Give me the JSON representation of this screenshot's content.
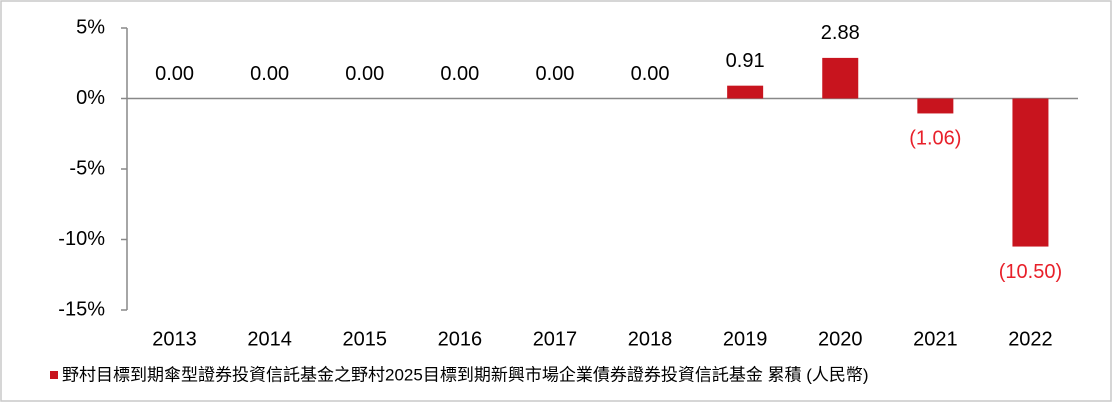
{
  "chart_data": {
    "type": "bar",
    "categories": [
      "2013",
      "2014",
      "2015",
      "2016",
      "2017",
      "2018",
      "2019",
      "2020",
      "2021",
      "2022"
    ],
    "series": [
      {
        "name": "野村目標到期傘型證券投資信託基金之野村2025目標到期新興市場企業債券證券投資信託基金 累積 (人民幣)",
        "color": "#c8141e",
        "values": [
          0,
          0,
          0,
          0,
          0,
          0,
          0.91,
          2.88,
          -1.06,
          -10.5
        ],
        "value_labels": [
          "0.00",
          "0.00",
          "0.00",
          "0.00",
          "0.00",
          "0.00",
          "0.91",
          "2.88",
          "(1.06)",
          "(10.50)"
        ]
      }
    ],
    "ylim": [
      -15,
      5
    ],
    "yticks": [
      {
        "value": 5,
        "label": "5%"
      },
      {
        "value": 0,
        "label": "0%"
      },
      {
        "value": -5,
        "label": "-5%"
      },
      {
        "value": -10,
        "label": "-10%"
      },
      {
        "value": -15,
        "label": "-15%"
      }
    ],
    "grid": false
  }
}
